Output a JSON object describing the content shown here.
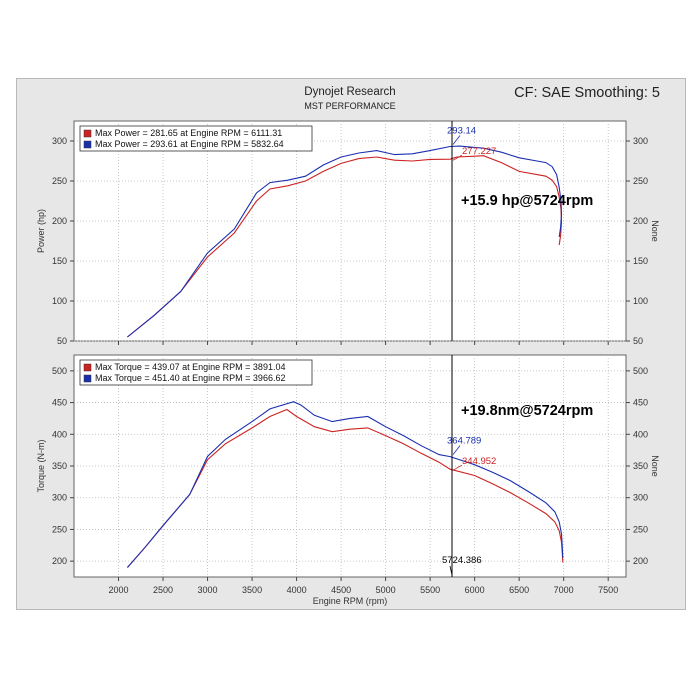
{
  "header": {
    "title": "Dynojet Research",
    "subtitle": "MST PERFORMANCE",
    "correction": "CF: SAE Smoothing: 5"
  },
  "colors": {
    "run1": "#cc2222",
    "run2": "#1a2fb0",
    "cursor": "#000000"
  },
  "chart_data": [
    {
      "type": "line",
      "name": "power",
      "ylabel": "Power (hp)",
      "right_label": "None",
      "xlim": [
        1500,
        7700
      ],
      "ylim": [
        50,
        325
      ],
      "yticks": [
        50,
        100,
        150,
        200,
        250,
        300
      ],
      "legend_position": "top-left",
      "series": [
        {
          "name": "Max Power = 281.65 at Engine RPM = 6111.31",
          "x": [
            2100,
            2400,
            2700,
            3000,
            3300,
            3550,
            3700,
            3900,
            4100,
            4300,
            4500,
            4700,
            4900,
            5100,
            5300,
            5500,
            5724,
            5800,
            6000,
            6100,
            6300,
            6500,
            6700,
            6800,
            6870,
            6920,
            6950,
            6970,
            6975,
            6965,
            6950
          ],
          "y": [
            55,
            82,
            112,
            155,
            185,
            225,
            240,
            244,
            250,
            262,
            272,
            278,
            280,
            276,
            275,
            277,
            277.2,
            280,
            281,
            281.6,
            273,
            262,
            258,
            256,
            251,
            243,
            230,
            215,
            198,
            182,
            170
          ]
        },
        {
          "name": "Max Power = 293.61 at Engine RPM = 5832.64",
          "x": [
            2100,
            2400,
            2700,
            3000,
            3300,
            3550,
            3700,
            3900,
            4100,
            4300,
            4500,
            4700,
            4900,
            5100,
            5300,
            5500,
            5724,
            5833,
            6000,
            6100,
            6300,
            6500,
            6700,
            6800,
            6870,
            6920,
            6950,
            6970,
            6975,
            6965,
            6950
          ],
          "y": [
            55,
            82,
            112,
            160,
            190,
            235,
            248,
            251,
            256,
            270,
            280,
            285,
            288,
            283,
            284,
            288,
            293.1,
            293.6,
            292,
            291,
            286,
            279,
            275,
            273,
            268,
            258,
            242,
            225,
            208,
            192,
            180
          ]
        }
      ],
      "cursor": {
        "x": 5724.386,
        "run2_label": "293.14",
        "run1_label": "277.227",
        "delta_text": "+15.9 hp@5724rpm"
      }
    },
    {
      "type": "line",
      "name": "torque",
      "xlabel": "Engine RPM (rpm)",
      "ylabel": "Torque (N-m)",
      "right_label": "None",
      "xlim": [
        1500,
        7700
      ],
      "xticks": [
        2000,
        2500,
        3000,
        3500,
        4000,
        4500,
        5000,
        5500,
        6000,
        6500,
        7000,
        7500
      ],
      "ylim": [
        175,
        525
      ],
      "yticks": [
        200,
        250,
        300,
        350,
        400,
        450,
        500
      ],
      "legend_position": "top-left",
      "series": [
        {
          "name": "Max Torque = 439.07 at Engine RPM = 3891.04",
          "x": [
            2100,
            2300,
            2500,
            2800,
            3000,
            3200,
            3500,
            3700,
            3891,
            4000,
            4200,
            4400,
            4600,
            4800,
            5000,
            5200,
            5400,
            5600,
            5724,
            6000,
            6200,
            6400,
            6600,
            6800,
            6900,
            6950,
            6975,
            6985,
            6990
          ],
          "y": [
            190,
            222,
            256,
            305,
            360,
            385,
            410,
            428,
            439,
            428,
            412,
            404,
            408,
            410,
            398,
            385,
            370,
            356,
            345,
            335,
            322,
            308,
            292,
            275,
            262,
            248,
            230,
            212,
            198
          ]
        },
        {
          "name": "Max Torque = 451.40 at Engine RPM = 3966.62",
          "x": [
            2100,
            2300,
            2500,
            2800,
            3000,
            3200,
            3500,
            3700,
            3967,
            4050,
            4200,
            4400,
            4600,
            4800,
            5000,
            5200,
            5400,
            5600,
            5724,
            6000,
            6200,
            6400,
            6600,
            6800,
            6900,
            6950,
            6975,
            6985,
            6990
          ],
          "y": [
            190,
            222,
            256,
            305,
            365,
            392,
            420,
            440,
            451.4,
            446,
            430,
            420,
            425,
            428,
            412,
            398,
            382,
            368,
            364.8,
            352,
            340,
            327,
            310,
            292,
            278,
            262,
            243,
            222,
            205
          ]
        }
      ],
      "cursor": {
        "x": 5724.386,
        "run2_label": "364.789",
        "run1_label": "344.952",
        "x_label": "5724.386",
        "delta_text": "+19.8nm@5724rpm"
      }
    }
  ]
}
